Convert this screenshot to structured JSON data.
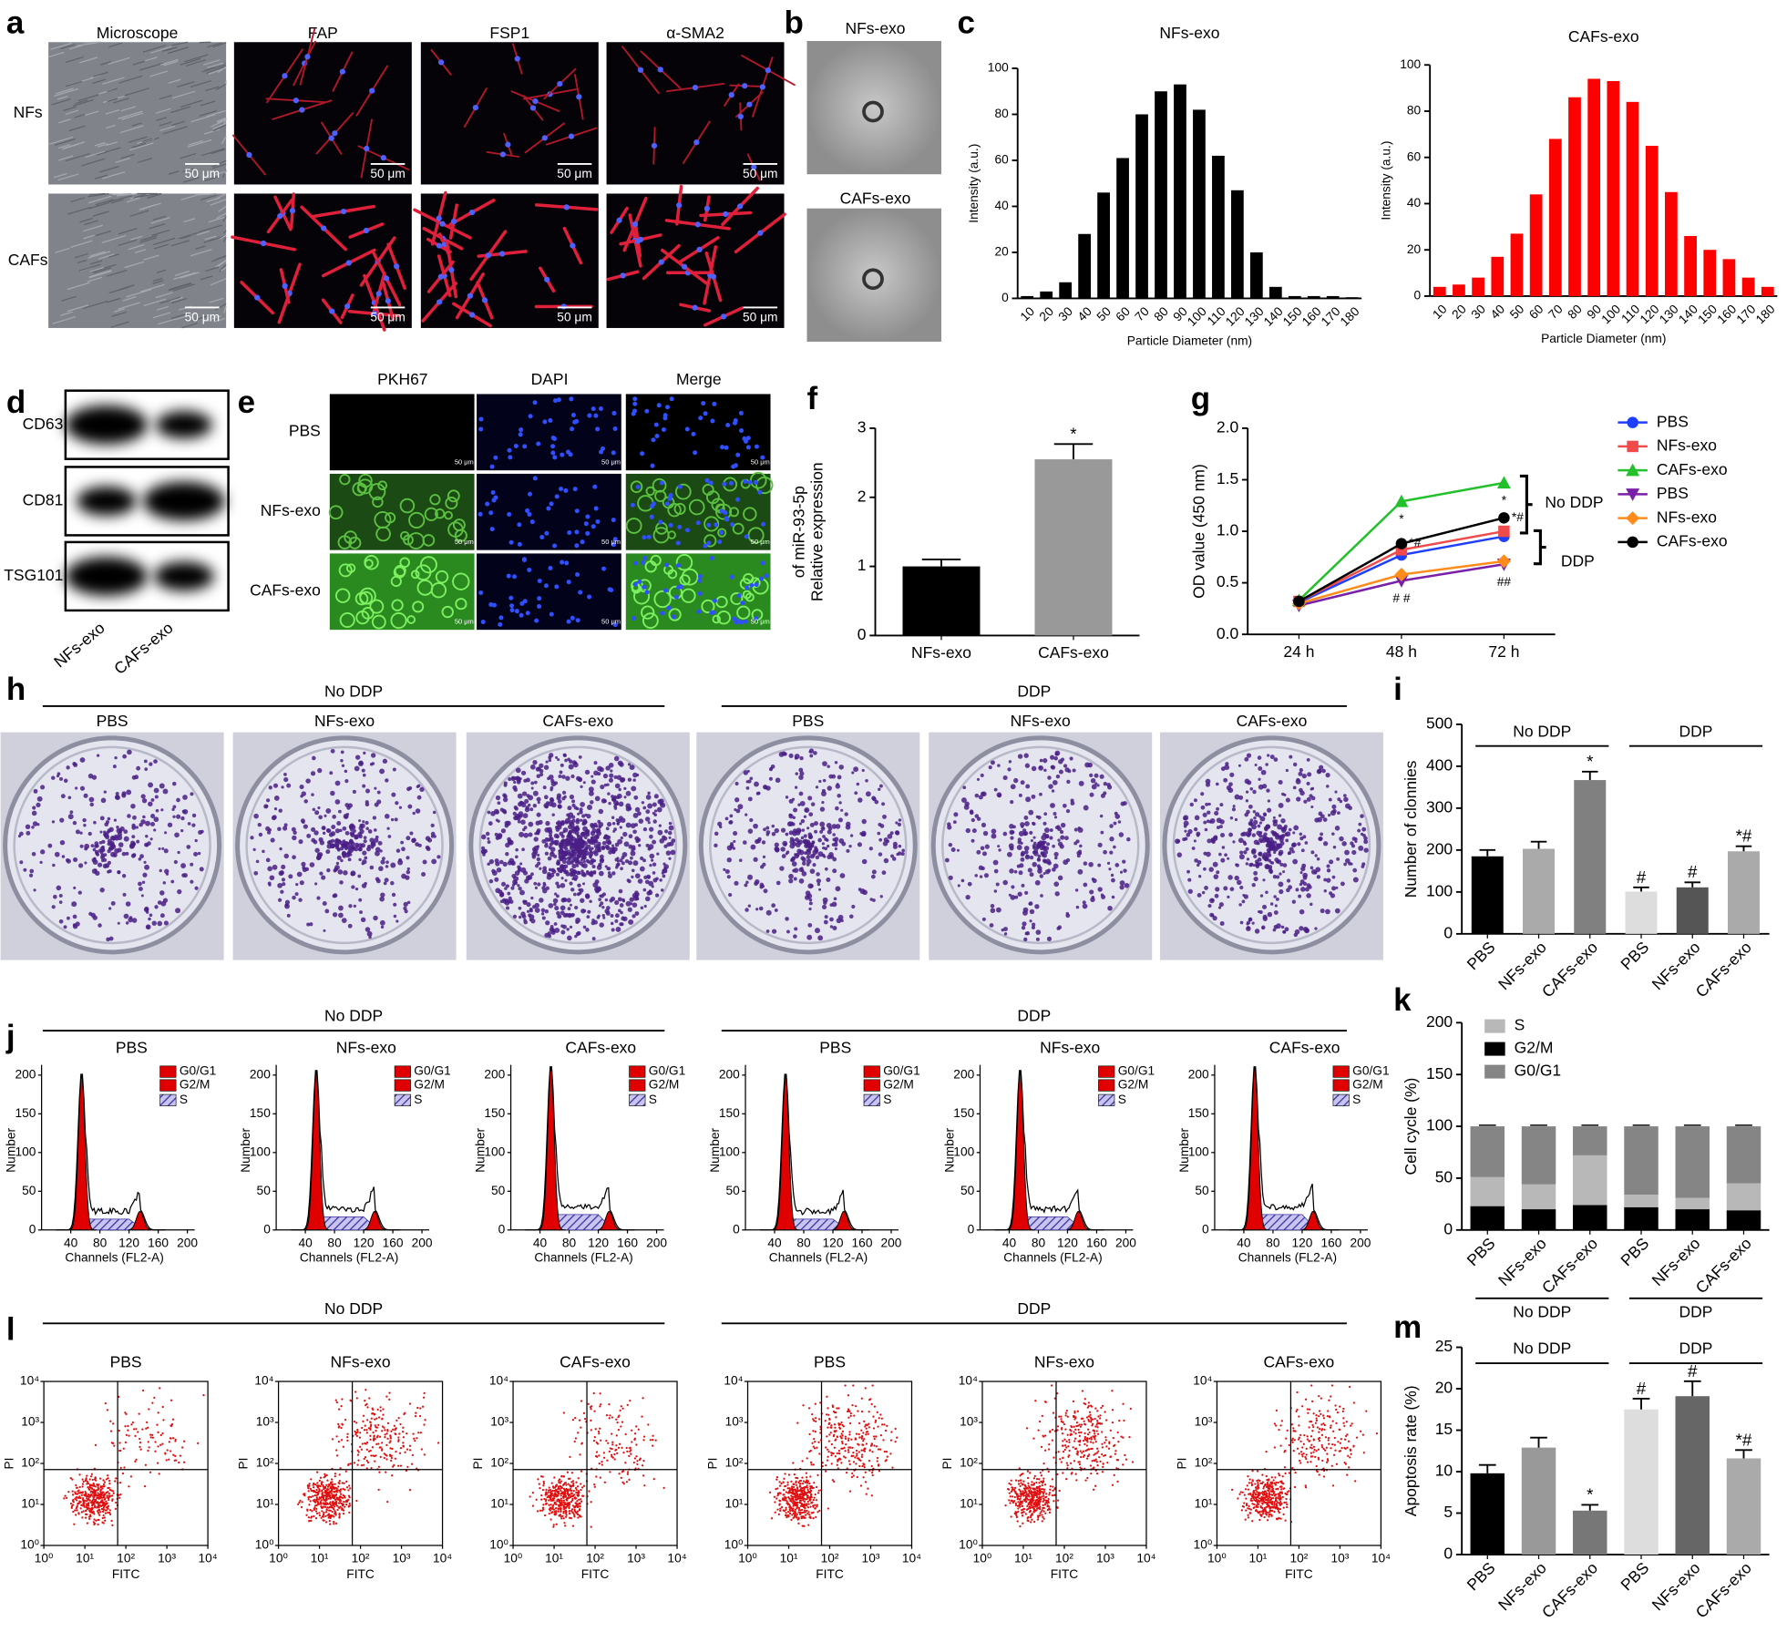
{
  "chart_data": [
    {
      "type": "bar",
      "panel": "c",
      "title": "NFs-exo",
      "categories": [
        "10",
        "20",
        "30",
        "40",
        "50",
        "60",
        "70",
        "80",
        "90",
        "100",
        "110",
        "120",
        "130",
        "140",
        "150",
        "160",
        "170",
        "180"
      ],
      "values": [
        1,
        3,
        7,
        28,
        46,
        61,
        80,
        90,
        93,
        82,
        62,
        47,
        20,
        5,
        1,
        1,
        1,
        0.5
      ],
      "color": "#000000",
      "ylim": [
        0,
        100
      ],
      "yticks": [
        0,
        20,
        40,
        60,
        80,
        100
      ],
      "xlabel": "Particle Diameter (nm)",
      "ylabel": "Intensity (a.u.)"
    },
    {
      "type": "bar",
      "title": "CAFs-exo",
      "categories": [
        "10",
        "20",
        "30",
        "40",
        "50",
        "60",
        "70",
        "80",
        "90",
        "100",
        "110",
        "120",
        "130",
        "140",
        "150",
        "160",
        "170",
        "180"
      ],
      "values": [
        4,
        5,
        8,
        17,
        27,
        44,
        68,
        86,
        94,
        93,
        84,
        65,
        45,
        26,
        20,
        16,
        8,
        4
      ],
      "color": "#ff0000",
      "ylim": [
        0,
        100
      ],
      "yticks": [
        0,
        20,
        40,
        60,
        80,
        100
      ],
      "xlabel": "Particle Diameter (nm)",
      "ylabel": "Intensity (a.u.)"
    },
    {
      "type": "bar",
      "panel": "f",
      "categories": [
        "NFs-exo",
        "CAFs-exo"
      ],
      "values": [
        1.0,
        2.55
      ],
      "errors": [
        0.1,
        0.22
      ],
      "colors": [
        "#000000",
        "#999999"
      ],
      "ylim": [
        0,
        3
      ],
      "yticks": [
        0,
        1,
        2,
        3
      ],
      "ylabel": [
        "Relative expression",
        "of miR-93-5p"
      ],
      "significance": [
        null,
        "*"
      ]
    },
    {
      "type": "line",
      "panel": "g",
      "categories": [
        "24 h",
        "48 h",
        "72 h"
      ],
      "series": [
        {
          "name": "PBS",
          "color": "#1f3fff",
          "marker": "circle",
          "values": [
            0.31,
            0.77,
            0.95
          ],
          "significance": [
            null,
            null,
            null
          ]
        },
        {
          "name": "NFs-exo",
          "color": "#f04a4a",
          "marker": "square",
          "values": [
            0.32,
            0.82,
            1.0
          ],
          "significance": [
            null,
            null,
            null
          ]
        },
        {
          "name": "CAFs-exo",
          "color": "#22c02a",
          "marker": "triangle",
          "values": [
            0.33,
            1.29,
            1.47
          ],
          "significance": [
            null,
            "*",
            "*"
          ]
        },
        {
          "name": "PBS",
          "color": "#7a1fa8",
          "marker": "triangle-down",
          "values": [
            0.28,
            0.52,
            0.68
          ],
          "significance": [
            null,
            "# #",
            "##"
          ]
        },
        {
          "name": "NFs-exo",
          "color": "#ff8c1a",
          "marker": "diamond",
          "values": [
            0.3,
            0.58,
            0.71
          ],
          "significance": [
            null,
            null,
            null
          ]
        },
        {
          "name": "CAFs-exo",
          "color": "#000000",
          "marker": "circle",
          "values": [
            0.32,
            0.88,
            1.13
          ],
          "significance": [
            null,
            "*#",
            "*#"
          ]
        }
      ],
      "ylim": [
        0,
        2
      ],
      "yticks": [
        {
          "value": 0,
          "label": "0.0"
        },
        0.5,
        {
          "value": 1,
          "label": "1.0"
        },
        1.5,
        {
          "value": 2,
          "label": "2.0"
        }
      ],
      "ylabel": "OD value (450 nm)",
      "brackets": [
        "No DDP",
        "DDP"
      ]
    },
    {
      "type": "bar",
      "panel": "i",
      "categories": [
        "PBS",
        "NFs-exo",
        "CAFs-exo",
        "PBS",
        "NFs-exo",
        "CAFs-exo"
      ],
      "values": [
        185,
        203,
        367,
        101,
        111,
        197
      ],
      "errors": [
        15,
        17,
        20,
        10,
        12,
        12
      ],
      "colors": [
        "#000000",
        "#aaaaaa",
        "#808080",
        "#dddddd",
        "#555555",
        "#aaaaaa"
      ],
      "ylim": [
        0,
        500
      ],
      "yticks": [
        0,
        100,
        200,
        300,
        400,
        500
      ],
      "ylabel": "Number of clonnies",
      "groups": [
        "No DDP",
        "DDP"
      ],
      "significance": [
        null,
        null,
        "*",
        "#",
        "#",
        "*#"
      ]
    },
    {
      "type": "stacked_bar",
      "panel": "k",
      "categories": [
        "PBS",
        "NFs-exo",
        "CAFs-exo",
        "PBS",
        "NFs-exo",
        "CAFs-exo"
      ],
      "series": [
        {
          "name": "S",
          "color": "#b8b8b8",
          "values": [
            28,
            24,
            48,
            12,
            11,
            26
          ]
        },
        {
          "name": "G2/M",
          "color": "#000000",
          "values": [
            23,
            20,
            24,
            22,
            20,
            19
          ]
        },
        {
          "name": "G0/G1",
          "color": "#858585",
          "values": [
            49,
            56,
            28,
            66,
            69,
            55
          ]
        }
      ],
      "ylim": [
        0,
        200
      ],
      "yticks": [
        0,
        50,
        100,
        150,
        200
      ],
      "ylabel": "Cell cycle (%)",
      "groups": [
        "No DDP",
        "DDP"
      ]
    },
    {
      "type": "bar",
      "panel": "m",
      "categories": [
        "PBS",
        "NFs-exo",
        "CAFs-exo",
        "PBS",
        "NFs-exo",
        "CAFs-exo"
      ],
      "values": [
        9.8,
        12.9,
        5.3,
        17.5,
        19.1,
        11.6
      ],
      "errors": [
        1.0,
        1.2,
        0.7,
        1.3,
        1.8,
        1.0
      ],
      "colors": [
        "#000000",
        "#999999",
        "#777777",
        "#dddddd",
        "#666666",
        "#aaaaaa"
      ],
      "ylim": [
        0,
        25
      ],
      "yticks": [
        0,
        5,
        10,
        15,
        20,
        25
      ],
      "ylabel": "Apoptosis rate (%)",
      "groups": [
        "No DDP",
        "DDP"
      ],
      "significance": [
        null,
        null,
        "*",
        "#",
        "#",
        "*#"
      ]
    }
  ],
  "figure": {
    "a": {
      "letter": "a",
      "columns": [
        "Microscope",
        "FAP",
        "FSP1",
        "α-SMA2"
      ],
      "rows": [
        "NFs",
        "CAFs"
      ],
      "scale_bar": "50 μm"
    },
    "b": {
      "letter": "b",
      "labels": [
        "NFs-exo",
        "CAFs-exo"
      ]
    },
    "d": {
      "letter": "d",
      "rows": [
        "CD63",
        "CD81",
        "TSG101"
      ],
      "columns": [
        "NFs-exo",
        "CAFs-exo"
      ]
    },
    "e": {
      "letter": "e",
      "columns": [
        "PKH67",
        "DAPI",
        "Merge"
      ],
      "rows": [
        "PBS",
        "NFs-exo",
        "CAFs-exo"
      ],
      "scale_bar": "50 μm"
    },
    "h": {
      "letter": "h",
      "groups": [
        "No DDP",
        "DDP"
      ],
      "labels": [
        "PBS",
        "NFs-exo",
        "CAFs-exo"
      ]
    },
    "j": {
      "letter": "j",
      "groups": [
        "No DDP",
        "DDP"
      ],
      "labels": [
        "PBS",
        "NFs-exo",
        "CAFs-exo"
      ],
      "legend": [
        "G0/G1",
        "G2/M",
        "S"
      ],
      "xlabel": "Channels (FL2-A)",
      "ylabel": "Number",
      "xticks": [
        40,
        80,
        120,
        160,
        200
      ],
      "yticks": [
        0,
        50,
        100,
        150,
        200
      ]
    },
    "l": {
      "letter": "l",
      "groups": [
        "No DDP",
        "DDP"
      ],
      "labels": [
        "PBS",
        "NFs-exo",
        "CAFs-exo"
      ],
      "xlabel": "FITC",
      "ylabel": "PI",
      "ticks": [
        "10⁰",
        "10¹",
        "10²",
        "10³",
        "10⁴"
      ]
    }
  }
}
